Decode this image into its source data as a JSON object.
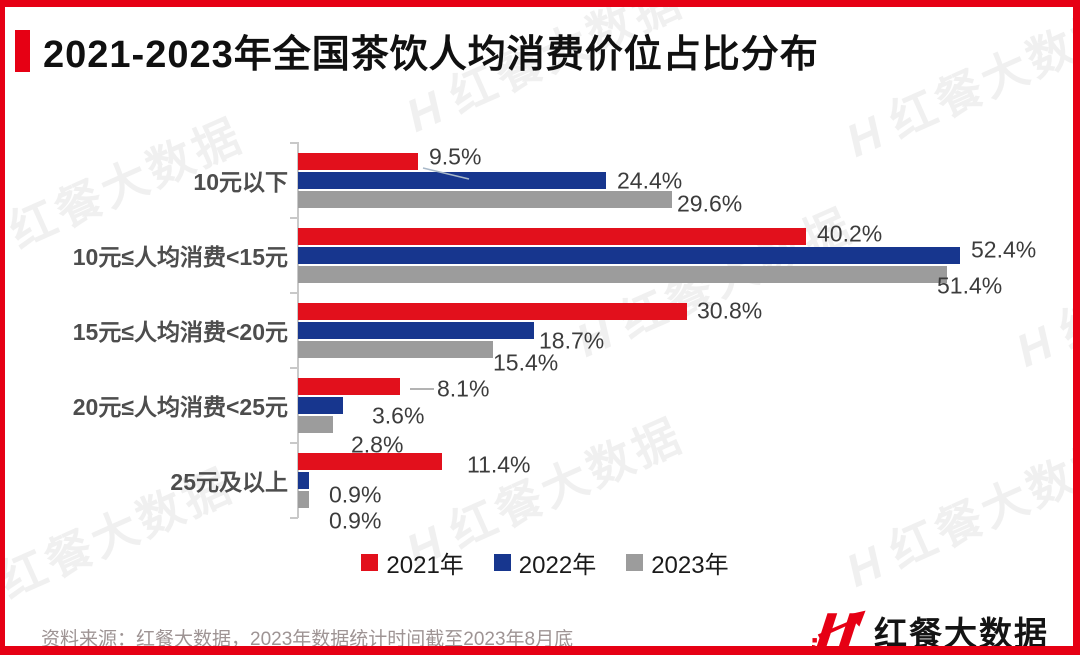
{
  "colors": {
    "brand_red": "#e60014",
    "series_red": "#e2101c",
    "series_blue": "#17368e",
    "series_gray": "#9c9c9c",
    "axis": "#c9c9c9"
  },
  "header": {
    "title": "2021-2023年全国茶饮人均消费价位占比分布"
  },
  "chart_data": {
    "type": "bar",
    "orientation": "horizontal",
    "title": "2021-2023年全国茶饮人均消费价位占比分布",
    "categories": [
      "10元以下",
      "10元≤人均消费<15元",
      "15元≤人均消费<20元",
      "20元≤人均消费<25元",
      "25元及以上"
    ],
    "series": [
      {
        "name": "2021年",
        "color": "#e2101c",
        "values": [
          9.5,
          40.2,
          30.8,
          8.1,
          11.4
        ]
      },
      {
        "name": "2022年",
        "color": "#17368e",
        "values": [
          24.4,
          52.4,
          18.7,
          3.6,
          0.9
        ]
      },
      {
        "name": "2023年",
        "color": "#9c9c9c",
        "values": [
          29.6,
          51.4,
          15.4,
          2.8,
          0.9
        ]
      }
    ],
    "value_suffix": "%",
    "xlim": [
      0,
      57
    ],
    "grid": false,
    "legend_position": "bottom"
  },
  "legend": {
    "items": [
      {
        "label": "2021年",
        "color": "#e2101c"
      },
      {
        "label": "2022年",
        "color": "#17368e"
      },
      {
        "label": "2023年",
        "color": "#9c9c9c"
      }
    ]
  },
  "footer": {
    "source": "资料来源：红餐大数据，2023年数据统计时间截至2023年8月底",
    "logo_text": "红餐大数据"
  },
  "watermark": {
    "text": "红餐大数据",
    "mark": "H"
  }
}
